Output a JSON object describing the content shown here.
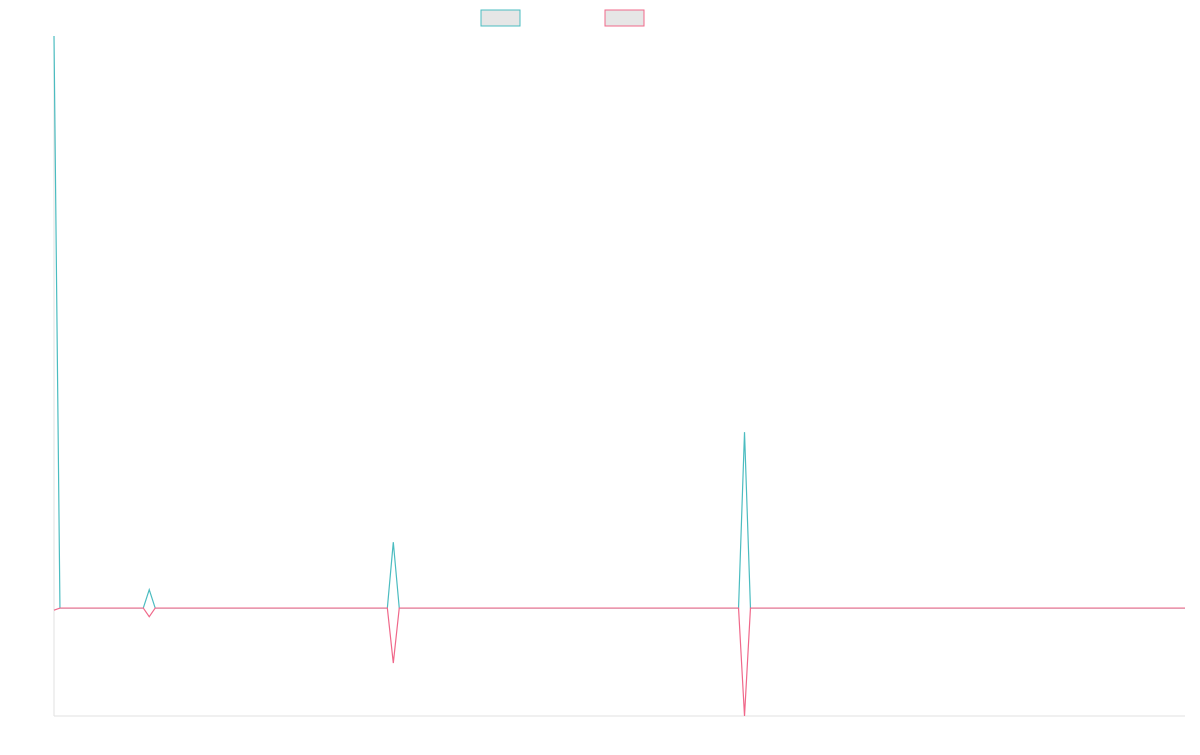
{
  "chart_data": {
    "type": "line",
    "title": "",
    "xlabel": "",
    "ylabel": "",
    "x": [
      0,
      1,
      15,
      16,
      17,
      56,
      57,
      58,
      115,
      116,
      117,
      190
    ],
    "xlim": [
      0,
      190
    ],
    "ylim": [
      -10,
      53
    ],
    "grid": false,
    "legend_position": "top",
    "series": [
      {
        "key": "series_a",
        "color": "#4bbcc0",
        "values": [
          53,
          0,
          0,
          1.7,
          0,
          0,
          6.1,
          0,
          0,
          16.3,
          0,
          0
        ]
      },
      {
        "key": "series_b",
        "color": "#f0688a",
        "values": [
          -0.2,
          0,
          0,
          -0.8,
          0,
          0,
          -5.1,
          0,
          0,
          -10,
          0,
          0
        ]
      }
    ]
  }
}
